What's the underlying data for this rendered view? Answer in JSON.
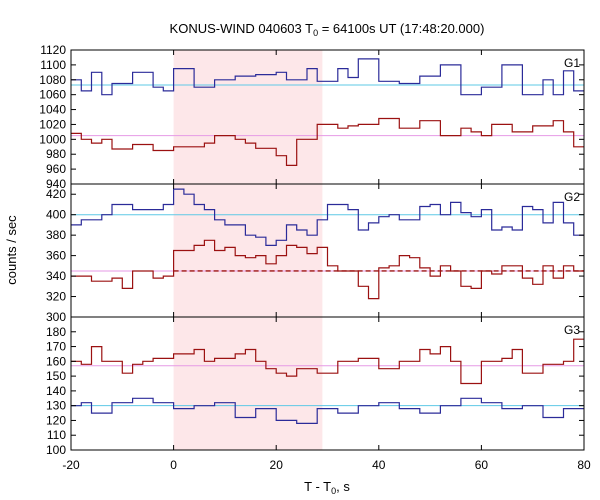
{
  "chart_data": {
    "type": "line",
    "title": {
      "prefix": "KONUS-WIND 040603 T",
      "sub": "0",
      "suffix": " = 64100s UT (17:48:20.000)"
    },
    "xlabel": {
      "prefix": "T - T",
      "sub": "0",
      "suffix": ", s"
    },
    "ylabel": "counts / sec",
    "xlim": [
      -20,
      80
    ],
    "x_ticks": [
      "-20",
      "0",
      "20",
      "40",
      "60",
      "80"
    ],
    "highlight_interval": [
      0,
      29
    ],
    "highlight_color": "#fde7e9",
    "colors": {
      "upper": "#2b2b99",
      "lower": "#9b1111",
      "blue_fit": "#5ec8e6",
      "red_fit": "#e69ae6"
    },
    "bin_edges": [
      -20,
      -18,
      -16,
      -14,
      -12,
      -10,
      -8,
      -6,
      -4,
      -2,
      0,
      2,
      4,
      6,
      8,
      10,
      12,
      14,
      16,
      18,
      20,
      22,
      24,
      26,
      28,
      30,
      32,
      34,
      36,
      38,
      40,
      42,
      44,
      46,
      48,
      50,
      52,
      54,
      56,
      58,
      60,
      62,
      64,
      66,
      68,
      70,
      72,
      74,
      76,
      78,
      80
    ],
    "panels": [
      {
        "label": "G1",
        "ylim": [
          940,
          1120
        ],
        "y_ticks": [
          "940",
          "960",
          "980",
          "1000",
          "1020",
          "1040",
          "1060",
          "1080",
          "1100",
          "1120"
        ],
        "series": [
          {
            "color": "#2b2b99",
            "fit": 1073,
            "fit_color": "#5ec8e6",
            "values": [
              1080,
              1065,
              1090,
              1060,
              1075,
              1075,
              1090,
              1090,
              1070,
              1065,
              1095,
              1095,
              1070,
              1070,
              1080,
              1080,
              1085,
              1085,
              1087,
              1087,
              1090,
              1080,
              1080,
              1095,
              1078,
              1078,
              1095,
              1083,
              1108,
              1108,
              1078,
              1078,
              1075,
              1075,
              1085,
              1085,
              1100,
              1100,
              1060,
              1060,
              1070,
              1070,
              1100,
              1100,
              1060,
              1060,
              1080,
              1060,
              1092,
              1065
            ]
          },
          {
            "color": "#9b1111",
            "fit": 1005,
            "fit_color": "#e69ae6",
            "values": [
              1008,
              1000,
              995,
              1000,
              987,
              987,
              993,
              993,
              985,
              985,
              990,
              990,
              990,
              995,
              1005,
              1005,
              1000,
              995,
              988,
              988,
              978,
              965,
              1000,
              1000,
              1020,
              1020,
              1015,
              1018,
              1020,
              1020,
              1028,
              1028,
              1015,
              1015,
              1025,
              1025,
              1005,
              1005,
              1015,
              1010,
              1005,
              1020,
              1020,
              1010,
              1010,
              1018,
              1018,
              1025,
              1010,
              990
            ]
          }
        ]
      },
      {
        "label": "G2",
        "ylim": [
          300,
          430
        ],
        "y_ticks": [
          "300",
          "320",
          "340",
          "360",
          "380",
          "400",
          "420"
        ],
        "series": [
          {
            "color": "#2b2b99",
            "fit": 400,
            "fit_color": "#5ec8e6",
            "values": [
              390,
              395,
              395,
              400,
              410,
              410,
              405,
              405,
              405,
              410,
              425,
              420,
              410,
              405,
              395,
              390,
              390,
              380,
              378,
              370,
              375,
              390,
              385,
              380,
              395,
              410,
              410,
              405,
              385,
              392,
              398,
              400,
              395,
              395,
              408,
              410,
              400,
              412,
              402,
              398,
              405,
              385,
              388,
              385,
              408,
              405,
              392,
              412,
              392,
              380
            ]
          },
          {
            "color": "#9b1111",
            "fit": 345,
            "fit_color": "#e69ae6",
            "values": [
              340,
              340,
              335,
              335,
              338,
              328,
              345,
              345,
              338,
              340,
              365,
              365,
              370,
              375,
              365,
              368,
              360,
              358,
              360,
              352,
              360,
              370,
              368,
              362,
              368,
              350,
              345,
              345,
              330,
              318,
              348,
              350,
              360,
              358,
              348,
              340,
              350,
              345,
              330,
              328,
              345,
              342,
              350,
              350,
              338,
              332,
              350,
              338,
              350,
              345
            ]
          }
        ]
      },
      {
        "label": "G3",
        "ylim": [
          100,
          190
        ],
        "y_ticks": [
          "100",
          "110",
          "120",
          "130",
          "140",
          "150",
          "160",
          "170",
          "180"
        ],
        "series": [
          {
            "color": "#2b2b99",
            "fit": 130,
            "fit_color": "#5ec8e6",
            "values": [
              130,
              132,
              125,
              125,
              132,
              132,
              135,
              135,
              132,
              132,
              128,
              128,
              130,
              130,
              132,
              132,
              122,
              122,
              128,
              128,
              120,
              120,
              118,
              118,
              128,
              128,
              125,
              125,
              130,
              130,
              132,
              132,
              128,
              128,
              125,
              125,
              130,
              130,
              135,
              135,
              132,
              132,
              128,
              128,
              130,
              130,
              122,
              122,
              128,
              128
            ]
          },
          {
            "color": "#9b1111",
            "fit": 157,
            "fit_color": "#e69ae6",
            "values": [
              160,
              158,
              170,
              160,
              160,
              152,
              158,
              160,
              162,
              162,
              165,
              165,
              168,
              160,
              162,
              162,
              165,
              168,
              160,
              155,
              152,
              150,
              155,
              155,
              152,
              152,
              160,
              160,
              162,
              162,
              155,
              155,
              160,
              160,
              168,
              165,
              170,
              160,
              145,
              145,
              160,
              160,
              162,
              168,
              152,
              152,
              158,
              158,
              160,
              175
            ]
          }
        ]
      }
    ]
  }
}
